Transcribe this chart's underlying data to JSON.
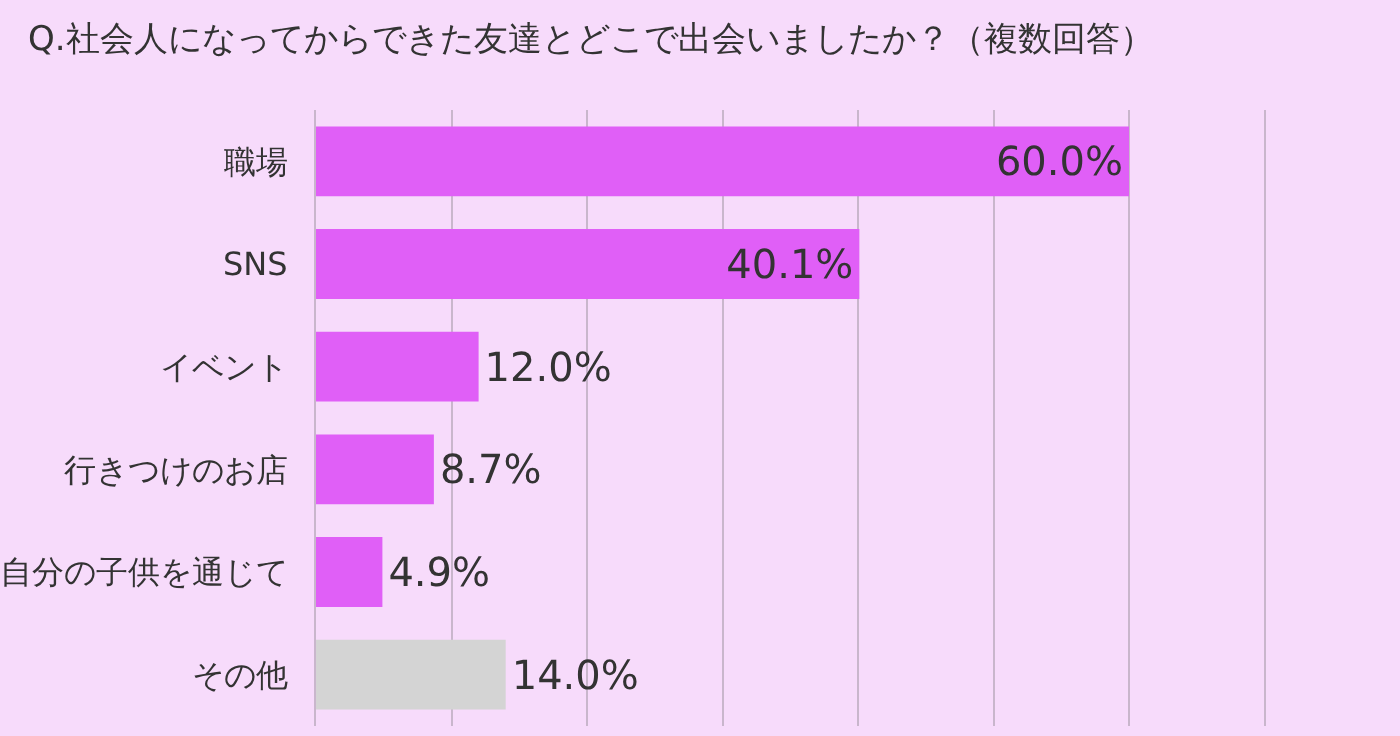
{
  "chart_data": {
    "type": "bar",
    "orientation": "horizontal",
    "title": "Q.社会人になってからできた友達とどこで出会いましたか？（複数回答）",
    "categories": [
      "職場",
      "SNS",
      "イベント",
      "行きつけのお店",
      "自分の子供を通じて",
      "その他"
    ],
    "values": [
      60.0,
      40.1,
      12.0,
      8.7,
      4.9,
      14.0
    ],
    "value_labels": [
      "60.0%",
      "40.1%",
      "12.0%",
      "8.7%",
      "4.9%",
      "14.0%"
    ],
    "colors": [
      "#e05ff7",
      "#e05ff7",
      "#e05ff7",
      "#e05ff7",
      "#e05ff7",
      "#d4d4d4"
    ],
    "xlim": [
      0,
      80
    ],
    "xticks": [
      0,
      {
        "value": 10,
        "label": null
      },
      {
        "value": 20,
        "label": null
      },
      {
        "value": 30,
        "label": null
      },
      {
        "value": 40,
        "label": null
      },
      {
        "value": 50,
        "label": null
      },
      {
        "value": 60,
        "label": null
      },
      {
        "value": 70,
        "label": null
      }
    ],
    "tick_labels": "y",
    "grid": "x"
  }
}
